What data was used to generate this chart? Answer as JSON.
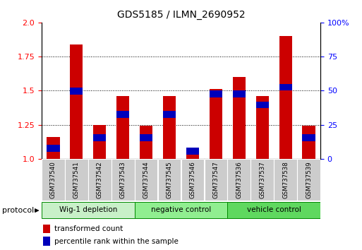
{
  "title": "GDS5185 / ILMN_2690952",
  "samples": [
    "GSM737540",
    "GSM737541",
    "GSM737542",
    "GSM737543",
    "GSM737544",
    "GSM737545",
    "GSM737546",
    "GSM737547",
    "GSM737536",
    "GSM737537",
    "GSM737538",
    "GSM737539"
  ],
  "red_values": [
    1.16,
    1.84,
    1.25,
    1.46,
    1.24,
    1.46,
    1.08,
    1.51,
    1.6,
    1.46,
    1.9,
    1.24
  ],
  "blue_pct": [
    10,
    52,
    18,
    35,
    18,
    35,
    8,
    50,
    50,
    42,
    55,
    18
  ],
  "groups": [
    {
      "label": "Wig-1 depletion",
      "indices": [
        0,
        1,
        2,
        3
      ],
      "color": "#c8f0c8"
    },
    {
      "label": "negative control",
      "indices": [
        4,
        5,
        6,
        7
      ],
      "color": "#90ee90"
    },
    {
      "label": "vehicle control",
      "indices": [
        8,
        9,
        10,
        11
      ],
      "color": "#5fd85f"
    }
  ],
  "ylim_left": [
    1.0,
    2.0
  ],
  "ylim_right": [
    0,
    100
  ],
  "left_ticks": [
    1.0,
    1.25,
    1.5,
    1.75,
    2.0
  ],
  "right_ticks": [
    0,
    25,
    50,
    75,
    100
  ],
  "red_color": "#cc0000",
  "blue_color": "#0000bb",
  "xticklabel_bg": "#cccccc",
  "group_border_color": "#008800"
}
